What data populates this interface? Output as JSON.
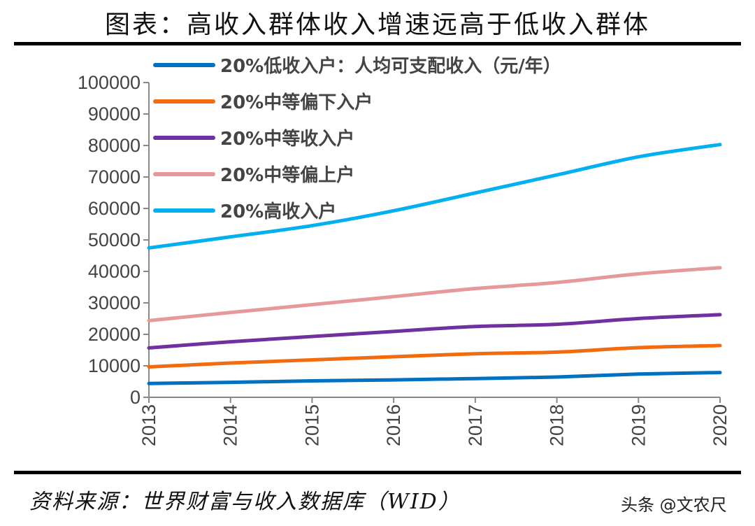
{
  "title": "图表：高收入群体收入增速远高于低收入群体",
  "source": "资料来源：世界财富与收入数据库（WID）",
  "watermark": "头条 @文农尺",
  "chart_data": {
    "type": "line",
    "categories": [
      "2013",
      "2014",
      "2015",
      "2016",
      "2017",
      "2018",
      "2019",
      "2020"
    ],
    "ylim": [
      0,
      100000
    ],
    "yticks": [
      "0",
      "10000",
      "20000",
      "30000",
      "40000",
      "50000",
      "60000",
      "70000",
      "80000",
      "90000",
      "100000"
    ],
    "grid": false,
    "legend_position": "top-left",
    "series": [
      {
        "name": "20%低收入户：人均可支配收入（元/年）",
        "color": "#0070C0",
        "values": [
          4402,
          4747,
          5221,
          5529,
          5958,
          6440,
          7380,
          7869
        ]
      },
      {
        "name": "20%中等偏下入户",
        "color": "#F26B0F",
        "values": [
          9654,
          10887,
          11894,
          12899,
          13843,
          14361,
          15777,
          16443
        ]
      },
      {
        "name": "20%中等收入户",
        "color": "#7030A0",
        "values": [
          15698,
          17631,
          19320,
          20924,
          22495,
          23189,
          25035,
          26249
        ]
      },
      {
        "name": "20%中等偏上户",
        "color": "#E6999A",
        "values": [
          24361,
          26937,
          29438,
          31990,
          34547,
          36471,
          39230,
          41172
        ]
      },
      {
        "name": "20%高收入户",
        "color": "#00B0F0",
        "values": [
          47457,
          50968,
          54544,
          59259,
          64934,
          70640,
          76401,
          80294
        ]
      }
    ]
  }
}
